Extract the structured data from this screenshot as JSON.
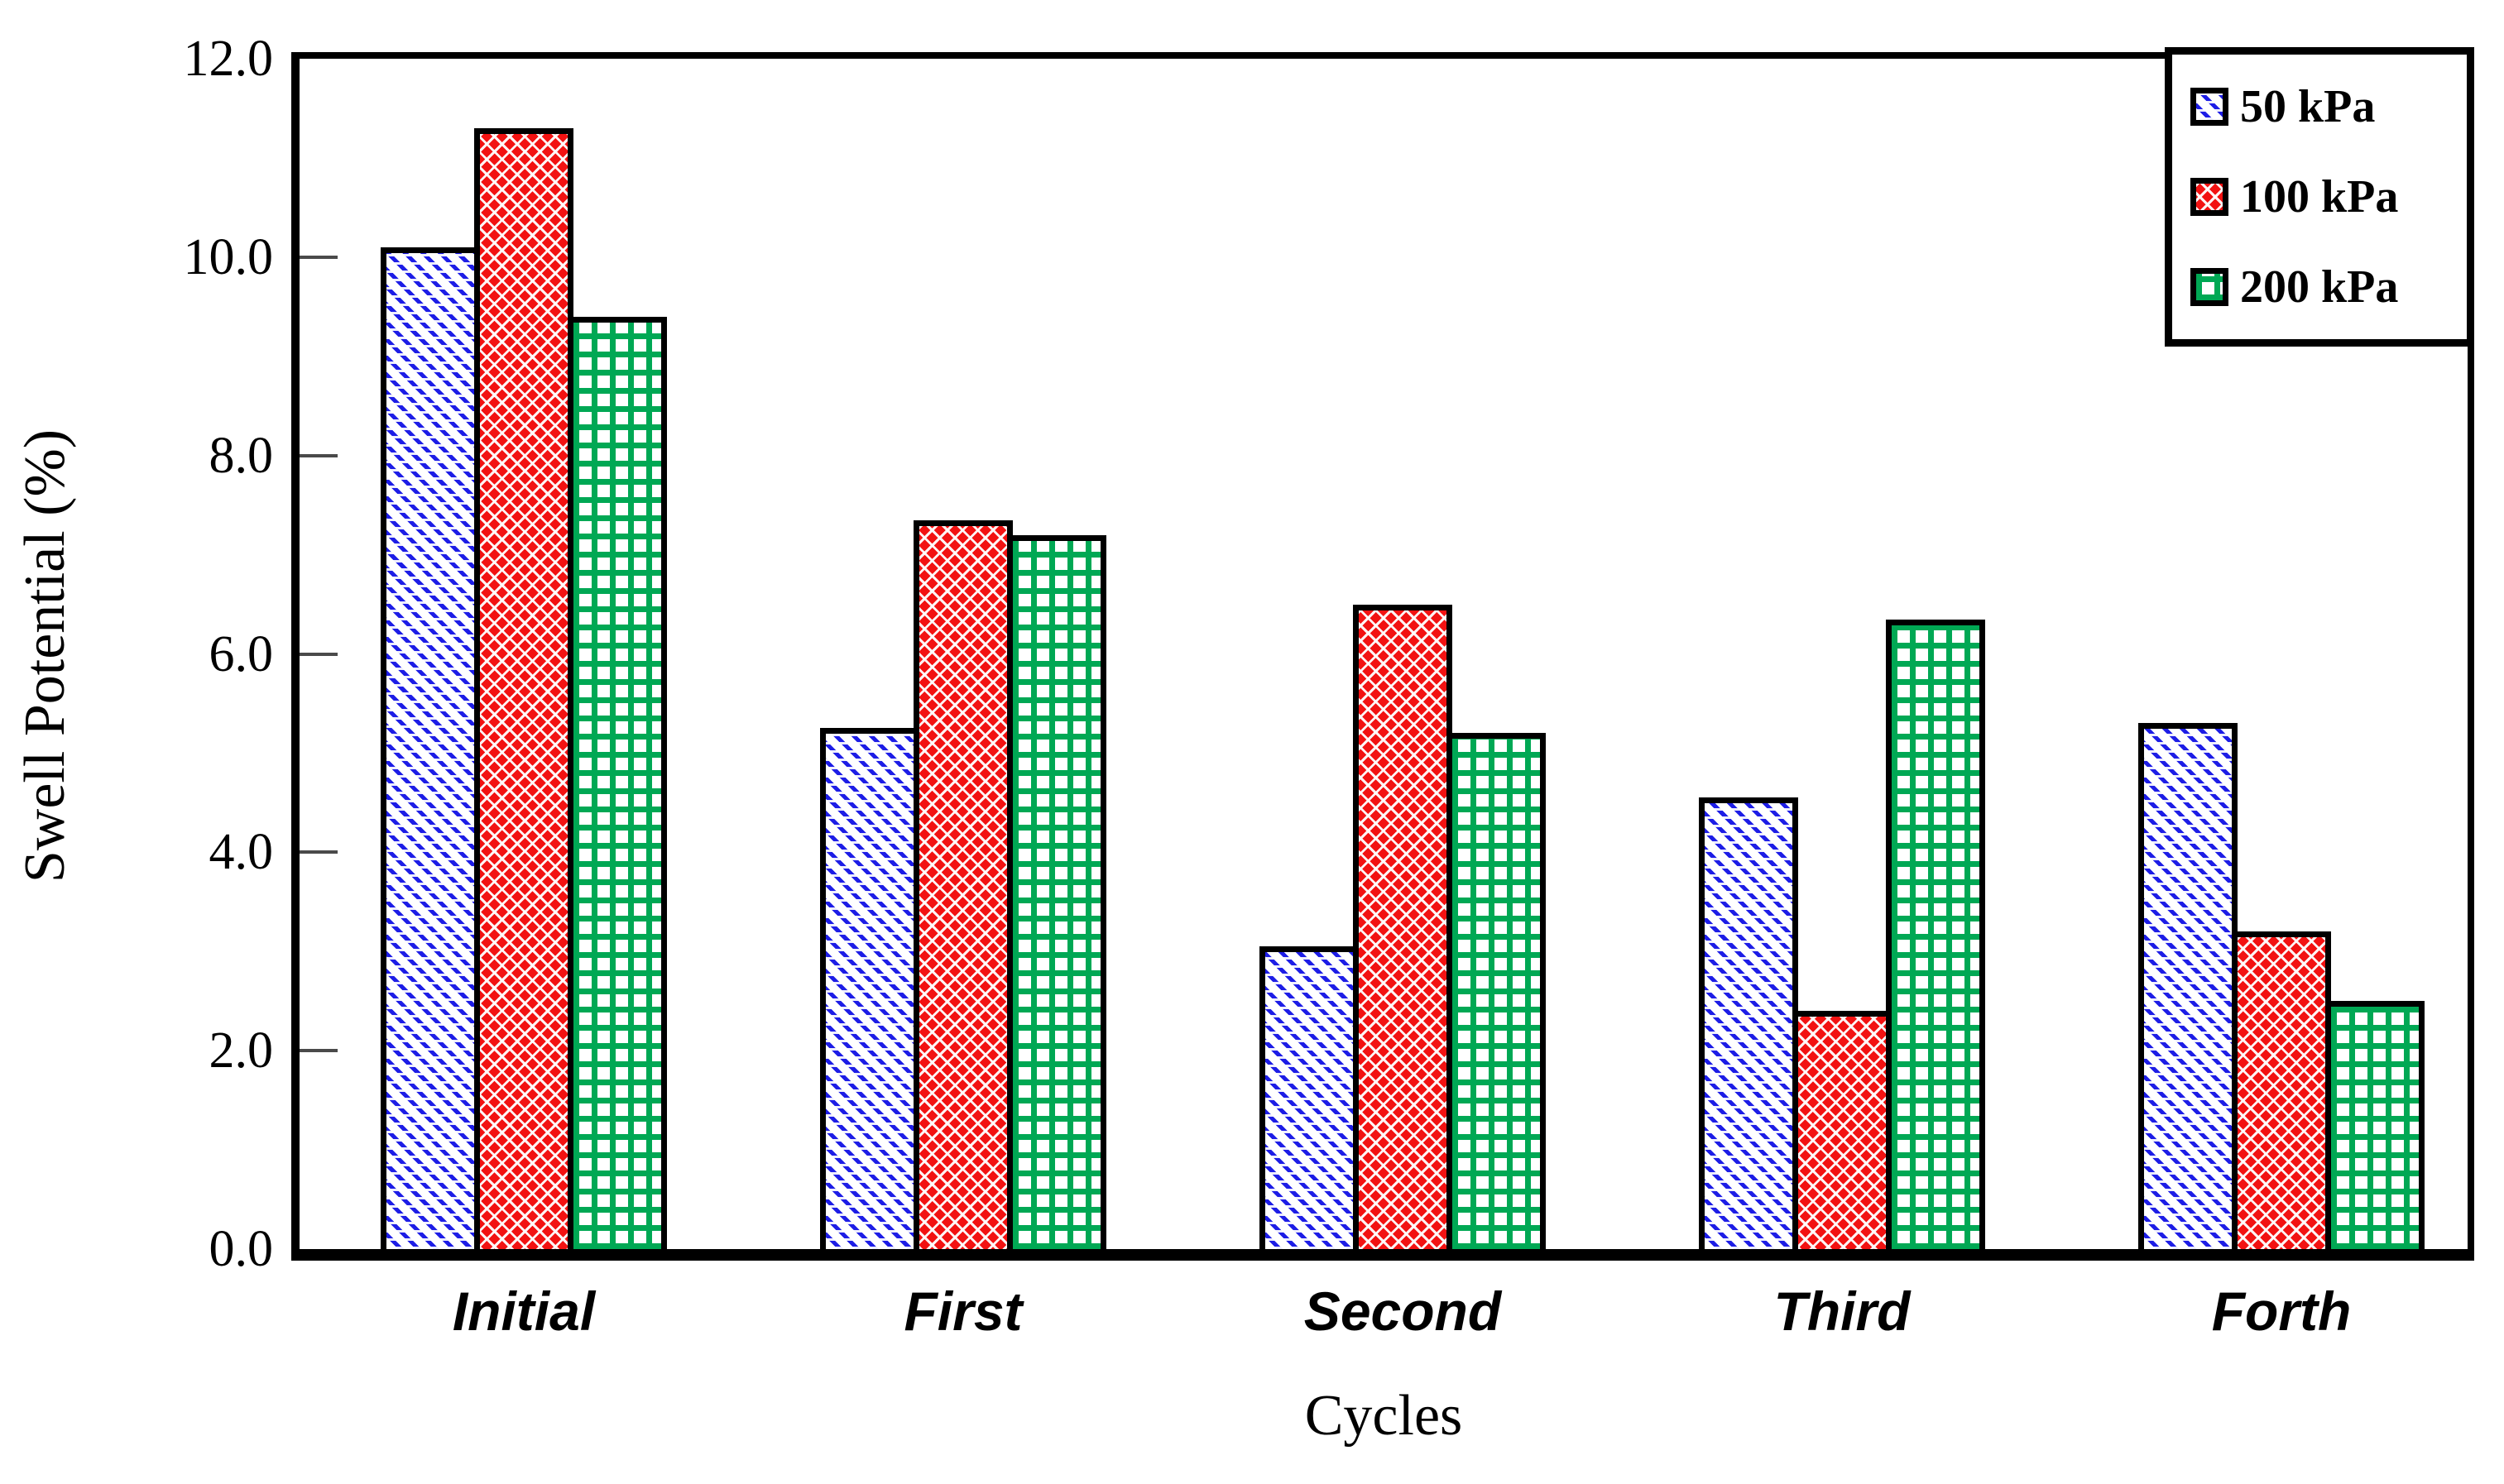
{
  "chart_data": {
    "type": "bar",
    "title": "",
    "xlabel": "Cycles",
    "ylabel": "Swell Potential (%)",
    "categories": [
      "Initial",
      "First",
      "Second",
      "Third",
      "Forth"
    ],
    "series": [
      {
        "name": "50 kPa",
        "pattern": "diagonal",
        "color": "#1d1de6",
        "values": [
          10.1,
          5.25,
          3.05,
          4.55,
          5.3
        ]
      },
      {
        "name": "100 kPa",
        "pattern": "crosshatch",
        "color": "#f21212",
        "values": [
          11.3,
          7.35,
          6.5,
          2.4,
          3.2
        ]
      },
      {
        "name": "200 kPa",
        "pattern": "grid",
        "color": "#00a854",
        "values": [
          9.4,
          7.2,
          5.2,
          6.35,
          2.5
        ]
      }
    ],
    "ylim": [
      0,
      12
    ],
    "ytick_step": 2,
    "ytick_labels": [
      "0.0",
      "2.0",
      "4.0",
      "6.0",
      "8.0",
      "10.0",
      "12.0"
    ],
    "legend_position": "top-right",
    "grid": false,
    "axis_color": "#000000",
    "background_color": "#ffffff"
  }
}
